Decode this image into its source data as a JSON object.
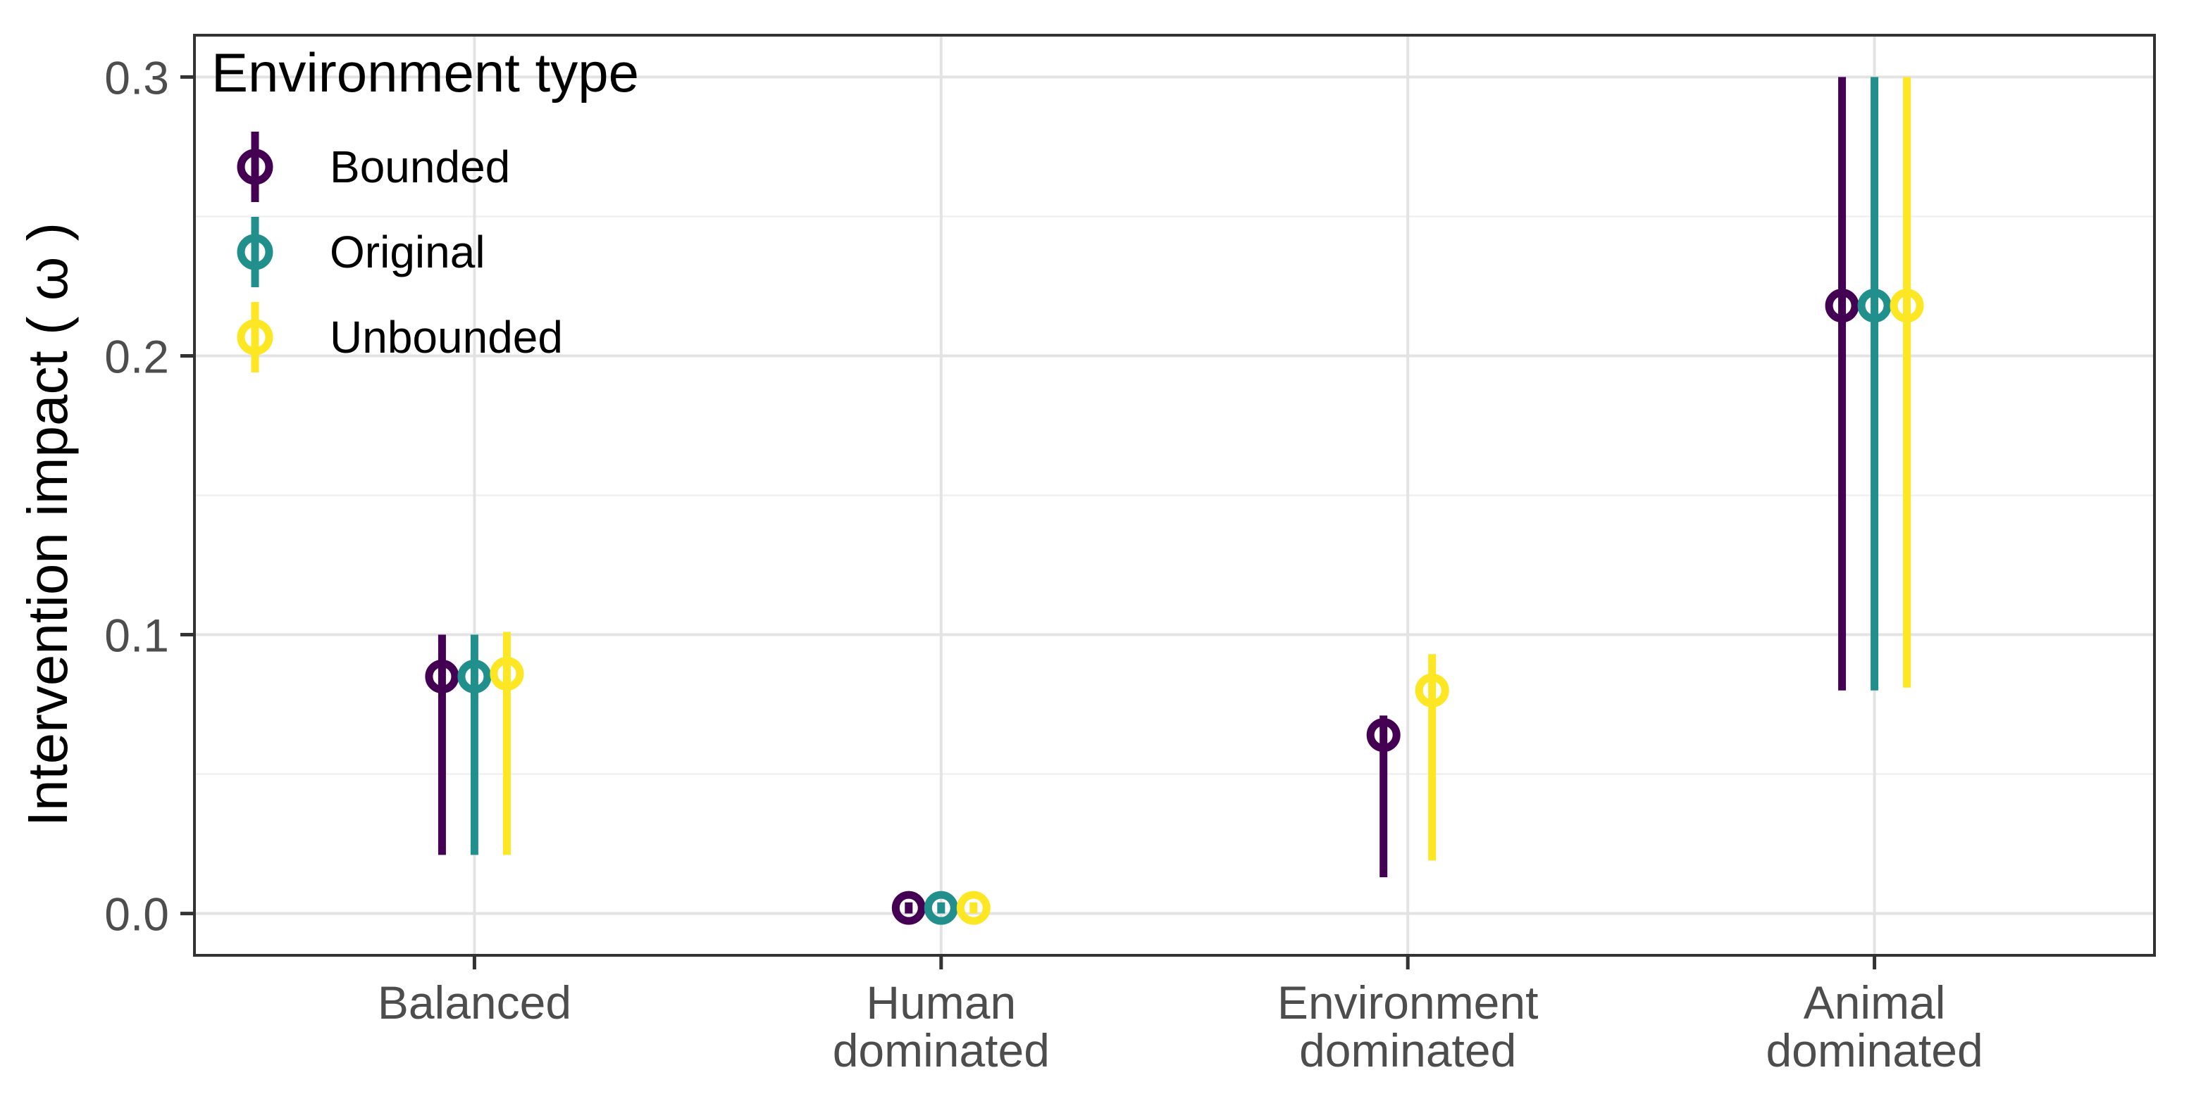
{
  "chart_data": {
    "type": "pointrange",
    "title": "",
    "xlabel": "",
    "ylabel": "Intervention impact ( ω )",
    "ylim": [
      0,
      0.3
    ],
    "y_major_ticks": [
      0.0,
      0.1,
      0.2,
      0.3
    ],
    "y_tick_labels": [
      "0.0",
      "0.1",
      "0.2",
      "0.3"
    ],
    "y_minor_ticks": [
      0.05,
      0.15,
      0.25
    ],
    "grid": "horizontal major+minor light grey; vertical major at each category; white panel with dark border",
    "legend": {
      "title": "Environment type",
      "position": "inside top-left"
    },
    "categories": [
      {
        "label_lines": [
          "Balanced"
        ]
      },
      {
        "label_lines": [
          "Human",
          "dominated"
        ]
      },
      {
        "label_lines": [
          "Environment",
          "dominated"
        ]
      },
      {
        "label_lines": [
          "Animal",
          "dominated"
        ]
      }
    ],
    "series": [
      {
        "name": "Bounded",
        "color": "#440154"
      },
      {
        "name": "Original",
        "color": "#21908C"
      },
      {
        "name": "Unbounded",
        "color": "#FDE725"
      }
    ],
    "points": [
      {
        "category": "Balanced",
        "series": "Bounded",
        "estimate": 0.085,
        "lower": 0.021,
        "upper": 0.1
      },
      {
        "category": "Balanced",
        "series": "Original",
        "estimate": 0.085,
        "lower": 0.021,
        "upper": 0.1
      },
      {
        "category": "Balanced",
        "series": "Unbounded",
        "estimate": 0.086,
        "lower": 0.021,
        "upper": 0.101
      },
      {
        "category": "Human dominated",
        "series": "Bounded",
        "estimate": 0.002,
        "lower": 0.0,
        "upper": 0.004
      },
      {
        "category": "Human dominated",
        "series": "Original",
        "estimate": 0.002,
        "lower": 0.0,
        "upper": 0.004
      },
      {
        "category": "Human dominated",
        "series": "Unbounded",
        "estimate": 0.002,
        "lower": 0.0,
        "upper": 0.004
      },
      {
        "category": "Environment dominated",
        "series": "Bounded",
        "estimate": 0.064,
        "lower": 0.013,
        "upper": 0.071
      },
      {
        "category": "Environment dominated",
        "series": "Unbounded",
        "estimate": 0.08,
        "lower": 0.019,
        "upper": 0.093
      },
      {
        "category": "Animal dominated",
        "series": "Bounded",
        "estimate": 0.218,
        "lower": 0.08,
        "upper": 0.3
      },
      {
        "category": "Animal dominated",
        "series": "Original",
        "estimate": 0.218,
        "lower": 0.08,
        "upper": 0.3
      },
      {
        "category": "Animal dominated",
        "series": "Unbounded",
        "estimate": 0.218,
        "lower": 0.081,
        "upper": 0.3
      }
    ],
    "notes": "Upper intervals of Animal dominated group are clipped at the 0.3 scale limit; Original series has no point in Environment dominated group; intervals in Human dominated group are hidden behind the point markers.",
    "colors": {
      "tick_label": "#4D4D4D",
      "axis_title": "#000000",
      "legend_text": "#000000",
      "panel_border": "#333333",
      "grid_major": "#E3E3E3",
      "grid_minor": "#F0F0F0",
      "background": "#FFFFFF"
    }
  }
}
